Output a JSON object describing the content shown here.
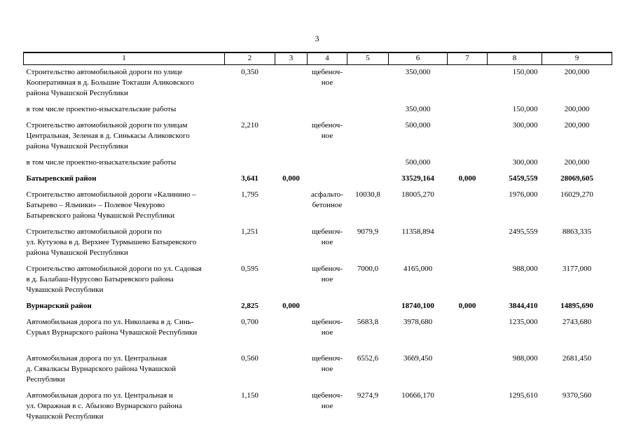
{
  "page": {
    "number": "3"
  },
  "table": {
    "headers": [
      "1",
      "2",
      "3",
      "4",
      "5",
      "6",
      "7",
      "8",
      "9"
    ],
    "rows": [
      {
        "bold": false,
        "cells": [
          "Строительство автомобильной дороги  по улице\nКооперативная в д. Большие Токташи  Аликовского\nрайона Чувашской Республики",
          "0,350",
          "",
          "щебеноч-\nное",
          "",
          "350,000",
          "",
          "150,000",
          "200,000"
        ]
      },
      {
        "bold": false,
        "cells": [
          "в том числе проектно-изыскательские работы",
          "",
          "",
          "",
          "",
          "350,000",
          "",
          "150,000",
          "200,000"
        ]
      },
      {
        "bold": false,
        "cells": [
          "Строительство автомобильной дороги по улицам\nЦентральная, Зеленая в д. Синькасы Аликовского\nрайона Чувашской Республики",
          "2,210",
          "",
          "щебеноч-\nное",
          "",
          "500,000",
          "",
          "300,000",
          "200,000"
        ]
      },
      {
        "bold": false,
        "cells": [
          "в том числе проектно-изыскательские работы",
          "",
          "",
          "",
          "",
          "500,000",
          "",
          "300,000",
          "200,000"
        ]
      },
      {
        "bold": true,
        "cells": [
          "Батыревский район",
          "3,641",
          "0,000",
          "",
          "",
          "33529,164",
          "0,000",
          "5459,559",
          "28069,605"
        ]
      },
      {
        "bold": false,
        "cells": [
          "Строительство автомобильной дороги «Калинино –\nБатырево – Яльчики» – Полевое Чекурово\nБатыревского района Чувашской Республики",
          "1,795",
          "",
          "асфальто-\nбетонное",
          "10030,8",
          "18005,270",
          "",
          "1976,000",
          "16029,270"
        ]
      },
      {
        "bold": false,
        "cells": [
          "Строительство автомобильной дороги по\nул. Кутузова в д. Верхнее Турмышево Батыревского\nрайона Чувашской Республики",
          "1,251",
          "",
          "щебеноч-\nное",
          "9079,9",
          "11358,894",
          "",
          "2495,559",
          "8863,335"
        ]
      },
      {
        "bold": false,
        "cells": [
          "Строительство автомобильной дороги по ул. Садовая\nв д. Балабаш-Нурусово Батыревского района\nЧувашской Республики",
          "0,595",
          "",
          "щебеноч-\nное",
          "7000,0",
          "4165,000",
          "",
          "988,000",
          "3177,000"
        ]
      },
      {
        "bold": true,
        "cells": [
          "Вурнарский район",
          "2,825",
          "0,000",
          "",
          "",
          "18740,100",
          "0,000",
          "3844,410",
          "14895,690"
        ]
      },
      {
        "bold": false,
        "extraGap": true,
        "cells": [
          "Автомобильная дорога по ул. Николаева в д. Синь-\nСурьял Вурнарского района Чувашской Республики",
          "0,700",
          "",
          "щебеноч-\nное",
          "5683,8",
          "3978,680",
          "",
          "1235,000",
          "2743,680"
        ]
      },
      {
        "bold": false,
        "cells": [
          "Автомобильная дорога по ул. Центральная\nд. Сявалкасы Вурнарского района Чувашской\nРеспублики",
          "0,560",
          "",
          "щебеноч-\nное",
          "6552,6",
          "3669,450",
          "",
          "988,000",
          "2681,450"
        ]
      },
      {
        "bold": false,
        "cells": [
          "Автомобильная дорога по ул. Центральная и\nул. Овражная в с. Абызово Вурнарского района\nЧувашской Республики",
          "1,150",
          "",
          "щебеноч-\nное",
          "9274,9",
          "10666,170",
          "",
          "1295,610",
          "9370,560"
        ]
      }
    ]
  }
}
